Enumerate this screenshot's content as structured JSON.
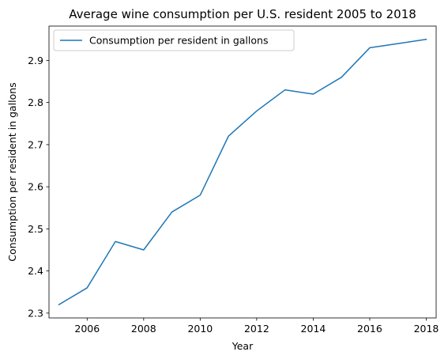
{
  "chart_data": {
    "type": "line",
    "title": "Average wine consumption per U.S. resident 2005 to 2018",
    "xlabel": "Year",
    "ylabel": "Consumption per resident in gallons",
    "x": [
      2005,
      2006,
      2007,
      2008,
      2009,
      2010,
      2011,
      2012,
      2013,
      2014,
      2015,
      2016,
      2017,
      2018
    ],
    "series": [
      {
        "name": "Consumption per resident in gallons",
        "values": [
          2.32,
          2.36,
          2.47,
          2.45,
          2.54,
          2.58,
          2.72,
          2.78,
          2.83,
          2.82,
          2.86,
          2.93,
          2.94,
          2.95
        ],
        "color": "#1f77b4"
      }
    ],
    "xlim": [
      2004.65,
      2018.35
    ],
    "ylim": [
      2.2885,
      2.9815
    ],
    "x_ticks": [
      2006,
      2008,
      2010,
      2012,
      2014,
      2016,
      2018
    ],
    "y_ticks": [
      2.3,
      2.4,
      2.5,
      2.6,
      2.7,
      2.8,
      2.9
    ],
    "grid": false,
    "legend_position": "upper left"
  }
}
